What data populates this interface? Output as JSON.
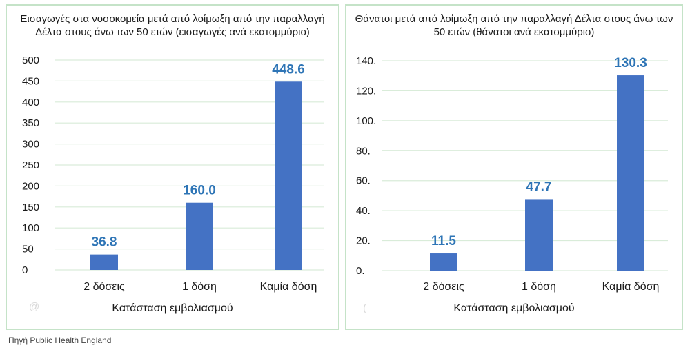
{
  "chart_data": [
    {
      "type": "bar",
      "title": "Εισαγωγές στα νοσοκομεία μετά από λοίμωξη από την παραλλαγή Δέλτα στους άνω των 50 ετών (εισαγωγές ανά εκατομμύριο)",
      "xlabel": "Κατάσταση εμβολιασμού",
      "ylabel": "",
      "categories": [
        "2 δόσεις",
        "1 δόση",
        "Καμία δόση"
      ],
      "values": [
        36.8,
        160.0,
        448.6
      ],
      "data_labels": [
        "36.8",
        "160.0",
        "448.6"
      ],
      "ylim": [
        0,
        500
      ],
      "yticks": [
        0,
        50,
        100,
        150,
        200,
        250,
        300,
        350,
        400,
        450,
        500
      ],
      "ytick_labels": [
        "0",
        "50",
        "100",
        "150",
        "200",
        "250",
        "300",
        "350",
        "400",
        "450",
        "500"
      ],
      "grid": true,
      "bar_color": "#4472c4",
      "label_color": "#2e75b6"
    },
    {
      "type": "bar",
      "title": "Θάνατοι μετά από λοίμωξη από την παραλλαγή Δέλτα στους άνω των 50 ετών (θάνατοι ανά εκατομμύριο)",
      "xlabel": "Κατάσταση εμβολιασμού",
      "ylabel": "",
      "categories": [
        "2 δόσεις",
        "1 δόση",
        "Καμία δόση"
      ],
      "values": [
        11.5,
        47.7,
        130.3
      ],
      "data_labels": [
        "11.5",
        "47.7",
        "130.3"
      ],
      "ylim": [
        0,
        140
      ],
      "yticks": [
        0,
        20,
        40,
        60,
        80,
        100,
        120,
        140
      ],
      "ytick_labels": [
        "0.",
        "20.",
        "40.",
        "60.",
        "80.",
        "100.",
        "120.",
        "140."
      ],
      "grid": true,
      "bar_color": "#4472c4",
      "label_color": "#2e75b6"
    }
  ],
  "source_text": "Πηγή Public Health England",
  "watermark_left": "@",
  "watermark_right": "("
}
